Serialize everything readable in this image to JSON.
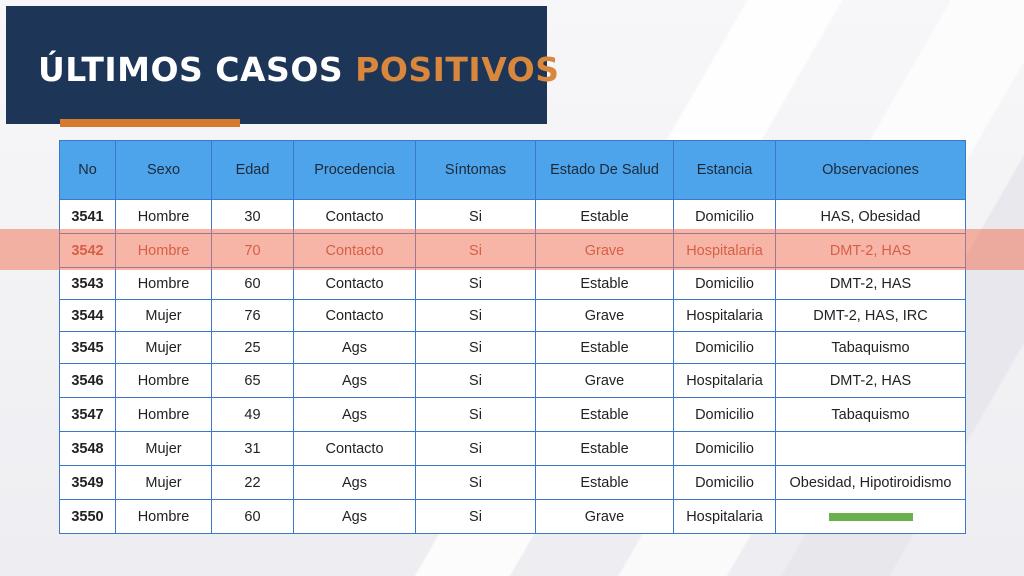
{
  "title": {
    "part1": "ÚLTIMOS CASOS ",
    "part2": "POSITIVOS"
  },
  "colors": {
    "header_bg": "#1d3557",
    "title_accent": "#d9873d",
    "underline": "#d67a2e",
    "table_header_bg": "#4da4ea",
    "table_border": "#3a78c9",
    "highlight": "#f0785f",
    "green_marker": "#6ab04c"
  },
  "table": {
    "headers": [
      "No",
      "Sexo",
      "Edad",
      "Procedencia",
      "Síntomas",
      "Estado De Salud",
      "Estancia",
      "Observaciones"
    ],
    "rows": [
      {
        "no": "3541",
        "sexo": "Hombre",
        "edad": "30",
        "procedencia": "Contacto",
        "sintomas": "Si",
        "estado": "Estable",
        "estancia": "Domicilio",
        "observaciones": "HAS, Obesidad"
      },
      {
        "no": "3542",
        "sexo": "Hombre",
        "edad": "70",
        "procedencia": "Contacto",
        "sintomas": "Si",
        "estado": "Grave",
        "estancia": "Hospitalaria",
        "observaciones": "DMT-2, HAS"
      },
      {
        "no": "3543",
        "sexo": "Hombre",
        "edad": "60",
        "procedencia": "Contacto",
        "sintomas": "Si",
        "estado": "Estable",
        "estancia": "Domicilio",
        "observaciones": "DMT-2, HAS"
      },
      {
        "no": "3544",
        "sexo": "Mujer",
        "edad": "76",
        "procedencia": "Contacto",
        "sintomas": "Si",
        "estado": "Grave",
        "estancia": "Hospitalaria",
        "observaciones": "DMT-2, HAS, IRC"
      },
      {
        "no": "3545",
        "sexo": "Mujer",
        "edad": "25",
        "procedencia": "Ags",
        "sintomas": "Si",
        "estado": "Estable",
        "estancia": "Domicilio",
        "observaciones": "Tabaquismo"
      },
      {
        "no": "3546",
        "sexo": "Hombre",
        "edad": "65",
        "procedencia": "Ags",
        "sintomas": "Si",
        "estado": "Grave",
        "estancia": "Hospitalaria",
        "observaciones": "DMT-2, HAS"
      },
      {
        "no": "3547",
        "sexo": "Hombre",
        "edad": "49",
        "procedencia": "Ags",
        "sintomas": "Si",
        "estado": "Estable",
        "estancia": "Domicilio",
        "observaciones": "Tabaquismo"
      },
      {
        "no": "3548",
        "sexo": "Mujer",
        "edad": "31",
        "procedencia": "Contacto",
        "sintomas": "Si",
        "estado": "Estable",
        "estancia": "Domicilio",
        "observaciones": ""
      },
      {
        "no": "3549",
        "sexo": "Mujer",
        "edad": "22",
        "procedencia": "Ags",
        "sintomas": "Si",
        "estado": "Estable",
        "estancia": "Domicilio",
        "observaciones": "Obesidad, Hipotiroidismo"
      },
      {
        "no": "3550",
        "sexo": "Hombre",
        "edad": "60",
        "procedencia": "Ags",
        "sintomas": "Si",
        "estado": "Grave",
        "estancia": "Hospitalaria",
        "observaciones": ""
      }
    ]
  }
}
